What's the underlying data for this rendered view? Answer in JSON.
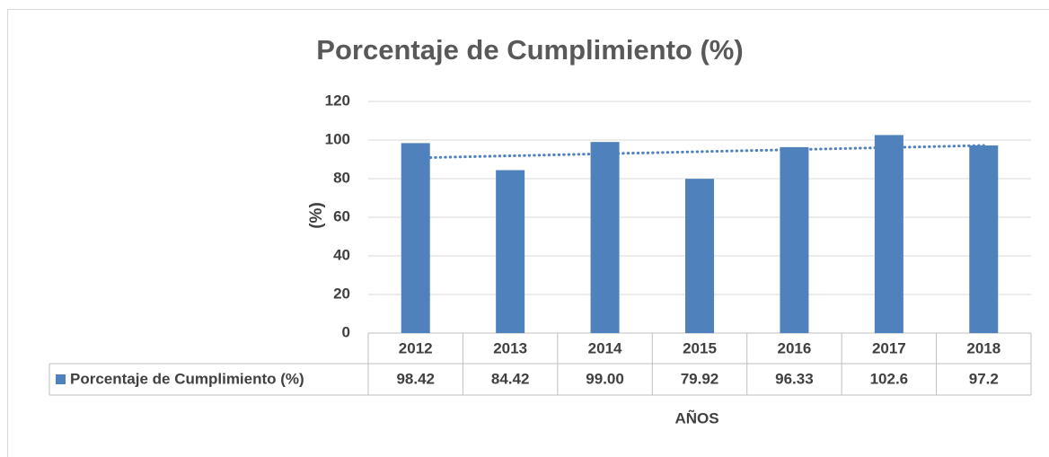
{
  "chart_data": {
    "type": "bar",
    "title": "Porcentaje de Cumplimiento (%)",
    "categories": [
      "2012",
      "2013",
      "2014",
      "2015",
      "2016",
      "2017",
      "2018"
    ],
    "series": [
      {
        "name": "Porcentaje de Cumplimiento (%)",
        "color": "#4f81bd",
        "values": [
          98.42,
          84.42,
          99.0,
          79.92,
          96.33,
          102.6,
          97.2
        ],
        "value_labels": [
          "98.42",
          "84.42",
          "99.00",
          "79.92",
          "96.33",
          "102.6",
          "97.2"
        ]
      }
    ],
    "ylabel": "(%)",
    "xlabel": "AÑOS",
    "ylim": [
      0,
      120
    ],
    "yticks": [
      0,
      20,
      40,
      60,
      80,
      100,
      120
    ],
    "grid": true,
    "trendline": "linear",
    "data_table": true
  }
}
